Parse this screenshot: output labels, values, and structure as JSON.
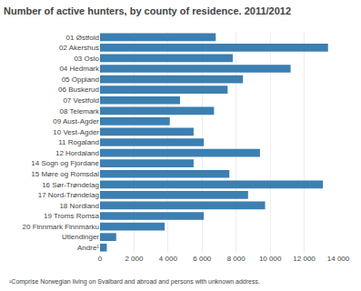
{
  "chart_data": {
    "type": "bar",
    "orientation": "horizontal",
    "title": "Number of active hunters, by county of residence. 2011/2012",
    "footnote": "¹Comprise Norwegian living on Svalbard and abroad and persons with unknown address.",
    "categories": [
      "01 Østfold",
      "02 Akershus",
      "03 Oslo",
      "04 Hedmark",
      "05 Oppland",
      "06 Buskerud",
      "07 Vestfold",
      "08 Telemark",
      "09 Aust-Agder",
      "10 Vest-Agder",
      "11 Rogaland",
      "12 Hordaland",
      "14 Sogn og Fjordane",
      "15 Møre og Romsdal",
      "16 Sør-Trøndelag",
      "17 Nord-Trøndelag",
      "18 Nordland",
      "19 Troms Romsa",
      "20 Finnmark Finnmárku",
      "Utlendinger",
      "Andre¹"
    ],
    "values": [
      6800,
      13400,
      7800,
      11200,
      8400,
      7500,
      4700,
      6700,
      4100,
      5500,
      6100,
      9400,
      5500,
      7600,
      13100,
      8700,
      9700,
      6100,
      3800,
      950,
      400
    ],
    "color": "#3c7fb1",
    "xlim": [
      0,
      14000
    ],
    "xticks": [
      0,
      {
        "value": 2000,
        "label": "2 000"
      },
      {
        "value": 4000,
        "label": "4 000"
      },
      {
        "value": 6000,
        "label": "6 000"
      },
      {
        "value": 8000,
        "label": "8 000"
      },
      {
        "value": 10000,
        "label": "10 000"
      },
      {
        "value": 12000,
        "label": "12 000"
      },
      {
        "value": 14000,
        "label": "14 000"
      }
    ],
    "grid": true
  }
}
